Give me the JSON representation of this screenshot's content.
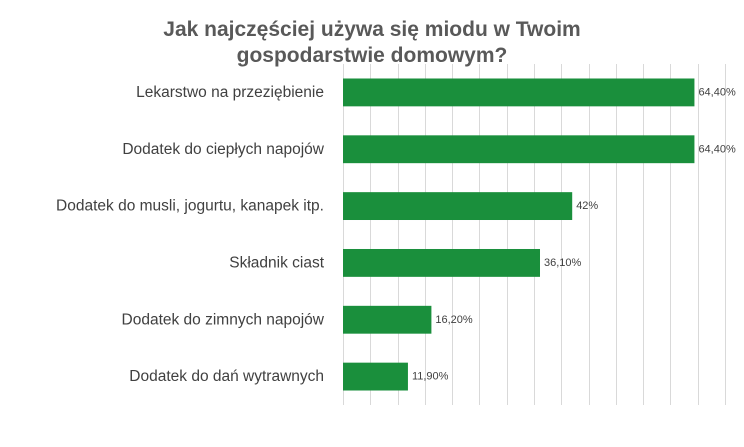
{
  "chart_data": {
    "type": "bar",
    "orientation": "horizontal",
    "title_lines": [
      "Jak najczęściej używa się miodu w Twoim",
      "gospodarstwie domowym?"
    ],
    "categories": [
      "Lekarstwo na przeziębienie",
      "Dodatek do ciepłych napojów",
      "Dodatek do musli, jogurtu, kanapek itp.",
      "Składnik ciast",
      "Dodatek do zimnych napojów",
      "Dodatek do dań wytrawnych"
    ],
    "values": [
      64.4,
      64.4,
      42,
      36.1,
      16.2,
      11.9
    ],
    "value_labels": [
      "64,40%",
      "64,40%",
      "42%",
      "36,10%",
      "16,20%",
      "11,90%"
    ],
    "xlim": [
      0,
      70
    ],
    "grid": true,
    "bar_color": "#1a8f3c",
    "grid_color": "#d9d9d9"
  }
}
